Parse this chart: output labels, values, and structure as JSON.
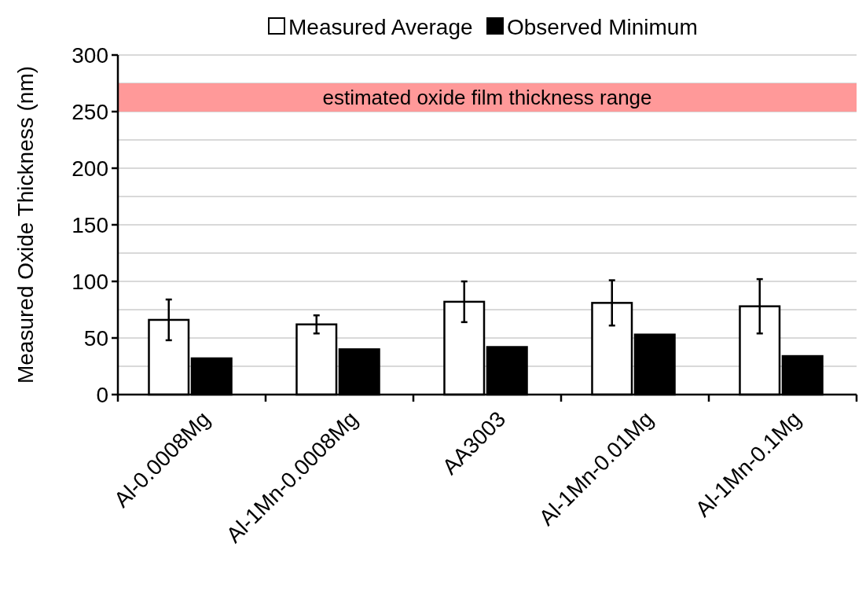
{
  "chart_data": {
    "type": "bar",
    "ylabel": "Measured Oxide Thickness (nm)",
    "categories": [
      "Al-0.0008Mg",
      "Al-1Mn-0.0008Mg",
      "AA3003",
      "Al-1Mn-0.01Mg",
      "Al-1Mn-0.1Mg"
    ],
    "series": [
      {
        "name": "Measured Average",
        "color": "#ffffff",
        "values": [
          66,
          62,
          82,
          81,
          78
        ],
        "errors": [
          18,
          8,
          18,
          20,
          24
        ]
      },
      {
        "name": "Observed Minimum",
        "color": "#000000",
        "values": [
          32,
          40,
          42,
          53,
          34
        ]
      }
    ],
    "ylim": [
      0,
      300
    ],
    "yticks": [
      0,
      {
        "value": 25,
        "label": null
      },
      50,
      {
        "value": 75,
        "label": null
      },
      100,
      {
        "value": 125,
        "label": null
      },
      150,
      {
        "value": 175,
        "label": null
      },
      200,
      {
        "value": 225,
        "label": null
      },
      250,
      {
        "value": 275,
        "label": null
      },
      300
    ],
    "grid": "y",
    "legend": "top",
    "bands": [
      {
        "axis": "y",
        "from": 250,
        "to": 275,
        "label": "estimated oxide film thickness range",
        "color": "#ff9999"
      }
    ]
  }
}
